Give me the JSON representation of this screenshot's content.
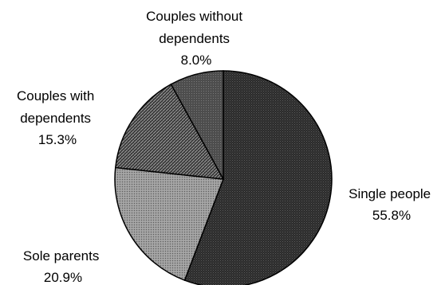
{
  "chart_data": {
    "type": "pie",
    "title": "",
    "slices": [
      {
        "label_lines": [
          "Single people"
        ],
        "percent_label": "55.8%",
        "value": 55.8,
        "pattern": "dense-dots"
      },
      {
        "label_lines": [
          "Sole parents"
        ],
        "percent_label": "20.9%",
        "value": 20.9,
        "pattern": "light-dots"
      },
      {
        "label_lines": [
          "Couples with",
          "dependents"
        ],
        "percent_label": "15.3%",
        "value": 15.3,
        "pattern": "diagonal-hatch"
      },
      {
        "label_lines": [
          "Couples without",
          "dependents"
        ],
        "percent_label": "8.0%",
        "value": 8.0,
        "pattern": "grid-dots"
      }
    ],
    "start_angle": "12 o'clock",
    "direction": "clockwise",
    "legend": "none (labels beside slices)",
    "colors": {
      "outline": "#000000",
      "background": "#ffffff"
    }
  }
}
